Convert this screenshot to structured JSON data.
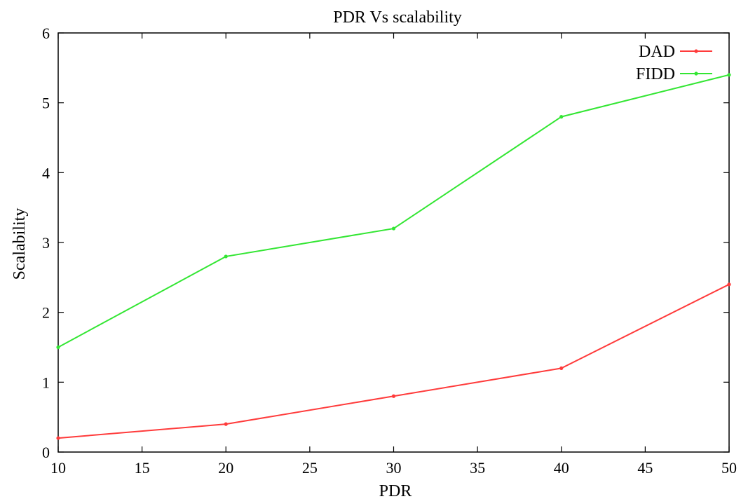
{
  "chart_data": {
    "type": "line",
    "title": "PDR Vs scalability",
    "xlabel": "PDR",
    "ylabel": "Scalability",
    "xlim": [
      10,
      50
    ],
    "ylim": [
      0,
      6
    ],
    "x_ticks": [
      10,
      15,
      20,
      25,
      30,
      35,
      40,
      45,
      50
    ],
    "y_ticks": [
      0,
      1,
      2,
      3,
      4,
      5,
      6
    ],
    "grid": false,
    "legend_position": "top-right",
    "series": [
      {
        "name": "DAD",
        "color": "#ff3b3b",
        "x": [
          10,
          20,
          30,
          40,
          50
        ],
        "y": [
          0.2,
          0.4,
          0.8,
          1.2,
          2.4
        ]
      },
      {
        "name": "FIDD",
        "color": "#33e633",
        "x": [
          10,
          20,
          30,
          40,
          50
        ],
        "y": [
          1.5,
          2.8,
          3.2,
          4.8,
          5.4
        ]
      }
    ]
  }
}
